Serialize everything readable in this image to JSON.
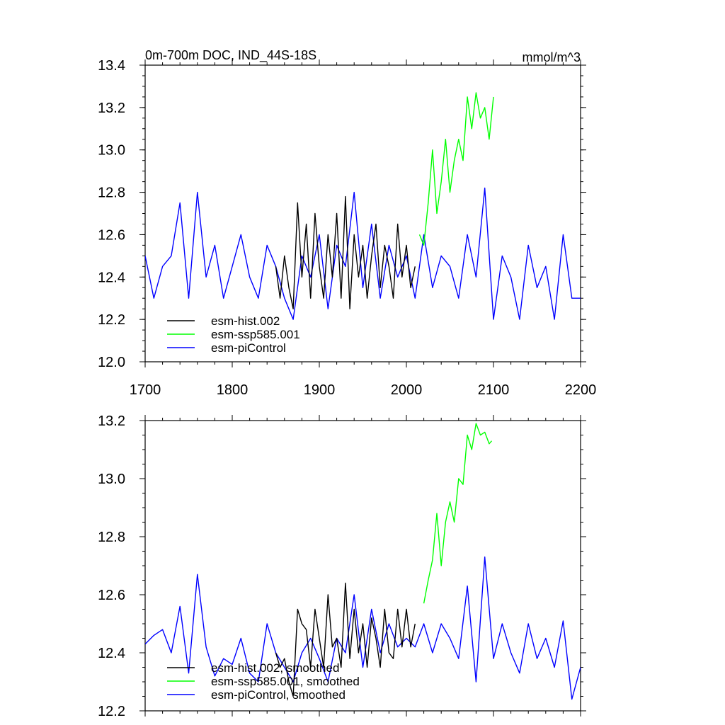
{
  "chart_data": [
    {
      "type": "line",
      "title": "0m-700m DOC, IND_44S-18S",
      "units": "mmol/m^3",
      "xlim": [
        1700,
        2200
      ],
      "ylim": [
        12.0,
        13.4
      ],
      "xticks": [
        "1700",
        "1800",
        "1900",
        "2000",
        "2100",
        "2200"
      ],
      "yticks": [
        "12.0",
        "12.2",
        "12.4",
        "12.6",
        "12.8",
        "13.0",
        "13.2",
        "13.4"
      ],
      "legend": "bottom-left",
      "series": [
        {
          "name": "esm-hist.002",
          "color": "#000000",
          "x": [
            1850,
            1855,
            1860,
            1865,
            1870,
            1875,
            1880,
            1885,
            1890,
            1895,
            1900,
            1905,
            1910,
            1915,
            1920,
            1925,
            1930,
            1935,
            1940,
            1945,
            1950,
            1955,
            1960,
            1965,
            1970,
            1975,
            1980,
            1985,
            1990,
            1995,
            2000,
            2005,
            2010
          ],
          "values": [
            12.45,
            12.3,
            12.5,
            12.35,
            12.25,
            12.75,
            12.4,
            12.65,
            12.3,
            12.7,
            12.45,
            12.3,
            12.6,
            12.4,
            12.7,
            12.3,
            12.78,
            12.25,
            12.6,
            12.4,
            12.55,
            12.3,
            12.5,
            12.65,
            12.35,
            12.55,
            12.45,
            12.3,
            12.65,
            12.4,
            12.55,
            12.35,
            12.45
          ]
        },
        {
          "name": "esm-ssp585.001",
          "color": "#00ff00",
          "x": [
            2015,
            2020,
            2025,
            2030,
            2035,
            2040,
            2045,
            2050,
            2055,
            2060,
            2065,
            2070,
            2075,
            2080,
            2085,
            2090,
            2095,
            2100
          ],
          "values": [
            12.6,
            12.55,
            12.75,
            13.0,
            12.7,
            12.85,
            13.05,
            12.8,
            12.95,
            13.05,
            12.95,
            13.25,
            13.1,
            13.27,
            13.15,
            13.2,
            13.05,
            13.25
          ]
        },
        {
          "name": "esm-piControl",
          "color": "#0000ff",
          "x": [
            1700,
            1710,
            1720,
            1730,
            1740,
            1750,
            1760,
            1770,
            1780,
            1790,
            1800,
            1810,
            1820,
            1830,
            1840,
            1850,
            1860,
            1870,
            1880,
            1890,
            1900,
            1910,
            1920,
            1930,
            1940,
            1950,
            1960,
            1970,
            1980,
            1990,
            2000,
            2010,
            2020,
            2030,
            2040,
            2050,
            2060,
            2070,
            2080,
            2090,
            2100,
            2110,
            2120,
            2130,
            2140,
            2150,
            2160,
            2170,
            2180,
            2190,
            2200
          ],
          "values": [
            12.5,
            12.3,
            12.45,
            12.5,
            12.75,
            12.3,
            12.8,
            12.4,
            12.55,
            12.3,
            12.45,
            12.6,
            12.4,
            12.3,
            12.55,
            12.45,
            12.3,
            12.2,
            12.5,
            12.4,
            12.6,
            12.25,
            12.55,
            12.45,
            12.8,
            12.35,
            12.65,
            12.3,
            12.55,
            12.4,
            12.5,
            12.3,
            12.6,
            12.35,
            12.5,
            12.45,
            12.3,
            12.6,
            12.4,
            12.82,
            12.2,
            12.5,
            12.4,
            12.2,
            12.55,
            12.35,
            12.45,
            12.2,
            12.6,
            12.3,
            12.3
          ]
        }
      ]
    },
    {
      "type": "line",
      "xlim": [
        1700,
        2200
      ],
      "ylim": [
        12.2,
        13.2
      ],
      "yticks": [
        "12.2",
        "12.4",
        "12.6",
        "12.8",
        "13.0",
        "13.2"
      ],
      "legend": "bottom-left",
      "series": [
        {
          "name": "esm-hist.002, smoothed",
          "color": "#000000",
          "x": [
            1850,
            1855,
            1860,
            1865,
            1870,
            1875,
            1880,
            1885,
            1890,
            1895,
            1900,
            1905,
            1910,
            1915,
            1920,
            1925,
            1930,
            1935,
            1940,
            1945,
            1950,
            1955,
            1960,
            1965,
            1970,
            1975,
            1980,
            1985,
            1990,
            1995,
            2000,
            2005,
            2010
          ],
          "values": [
            12.4,
            12.35,
            12.38,
            12.3,
            12.25,
            12.55,
            12.5,
            12.48,
            12.35,
            12.55,
            12.45,
            12.35,
            12.6,
            12.42,
            12.45,
            12.35,
            12.64,
            12.38,
            12.55,
            12.4,
            12.5,
            12.35,
            12.52,
            12.45,
            12.35,
            12.55,
            12.4,
            12.38,
            12.55,
            12.42,
            12.55,
            12.42,
            12.5
          ]
        },
        {
          "name": "esm-ssp585.001, smoothed",
          "color": "#00ff00",
          "x": [
            2020,
            2025,
            2030,
            2035,
            2040,
            2045,
            2050,
            2055,
            2060,
            2065,
            2070,
            2075,
            2080,
            2085,
            2090,
            2095,
            2098
          ],
          "values": [
            12.57,
            12.65,
            12.72,
            12.88,
            12.7,
            12.85,
            12.92,
            12.85,
            13.0,
            12.98,
            13.15,
            13.1,
            13.19,
            13.15,
            13.16,
            13.12,
            13.13
          ]
        },
        {
          "name": "esm-piControl, smoothed",
          "color": "#0000ff",
          "x": [
            1700,
            1710,
            1720,
            1730,
            1740,
            1750,
            1760,
            1770,
            1780,
            1790,
            1800,
            1810,
            1820,
            1830,
            1840,
            1850,
            1860,
            1870,
            1880,
            1890,
            1900,
            1910,
            1920,
            1930,
            1940,
            1950,
            1960,
            1970,
            1980,
            1990,
            2000,
            2010,
            2020,
            2030,
            2040,
            2050,
            2060,
            2070,
            2080,
            2090,
            2100,
            2110,
            2120,
            2130,
            2140,
            2150,
            2160,
            2170,
            2180,
            2190,
            2200
          ],
          "values": [
            12.43,
            12.46,
            12.48,
            12.4,
            12.56,
            12.33,
            12.67,
            12.42,
            12.32,
            12.38,
            12.36,
            12.45,
            12.33,
            12.3,
            12.5,
            12.4,
            12.35,
            12.3,
            12.4,
            12.45,
            12.38,
            12.3,
            12.45,
            12.4,
            12.6,
            12.35,
            12.55,
            12.4,
            12.5,
            12.42,
            12.45,
            12.42,
            12.5,
            12.4,
            12.5,
            12.45,
            12.38,
            12.63,
            12.3,
            12.73,
            12.38,
            12.5,
            12.4,
            12.33,
            12.5,
            12.38,
            12.45,
            12.35,
            12.51,
            12.24,
            12.35
          ]
        }
      ]
    }
  ]
}
